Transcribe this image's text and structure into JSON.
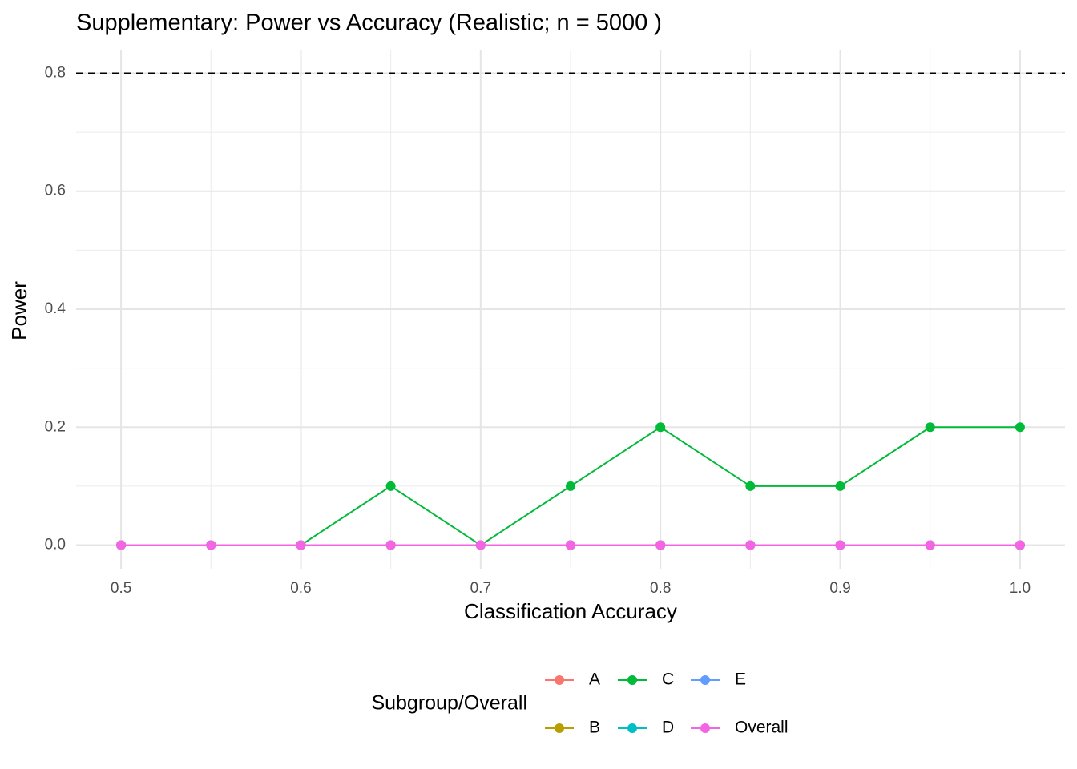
{
  "chart_data": {
    "type": "line",
    "title": "Supplementary: Power vs Accuracy (Realistic; n = 5000 )",
    "x_label": "Classification Accuracy",
    "y_label": "Power",
    "legend_title": "Subgroup/Overall",
    "legend_position": "bottom",
    "x": [
      0.5,
      0.55,
      0.6,
      0.65,
      0.7,
      0.75,
      0.8,
      0.85,
      0.9,
      0.95,
      1.0
    ],
    "series": [
      {
        "name": "A",
        "color": "#F8766D",
        "values": [
          0,
          0,
          0,
          0,
          0,
          0,
          0,
          0,
          0,
          0,
          0
        ]
      },
      {
        "name": "B",
        "color": "#B79F00",
        "values": [
          0,
          0,
          0,
          0,
          0,
          0,
          0,
          0,
          0,
          0,
          0
        ]
      },
      {
        "name": "C",
        "color": "#00BA38",
        "values": [
          0,
          0,
          0,
          0.1,
          0,
          0.1,
          0.2,
          0.1,
          0.1,
          0.2,
          0.2
        ]
      },
      {
        "name": "D",
        "color": "#00BFC4",
        "values": [
          0,
          0,
          0,
          0,
          0,
          0,
          0,
          0,
          0,
          0,
          0
        ]
      },
      {
        "name": "E",
        "color": "#619CFF",
        "values": [
          0,
          0,
          0,
          0,
          0,
          0,
          0,
          0,
          0,
          0,
          0
        ]
      },
      {
        "name": "Overall",
        "color": "#F564E3",
        "values": [
          0,
          0,
          0,
          0,
          0,
          0,
          0,
          0,
          0,
          0,
          0
        ]
      }
    ],
    "xlim": [
      0.475,
      1.025
    ],
    "ylim": [
      -0.04,
      0.84
    ],
    "xticks": [
      0.5,
      0.6,
      0.7,
      0.8,
      0.9,
      {
        "value": 1,
        "label": "1.0"
      }
    ],
    "yticks": [
      {
        "value": 0,
        "label": "0.0"
      },
      0.2,
      0.4,
      0.6,
      0.8
    ],
    "x_minor_ticks": [
      0.55,
      0.65,
      0.75,
      0.85,
      0.95
    ],
    "y_minor_ticks": [
      0.1,
      0.3,
      0.5,
      0.7
    ],
    "grid": true,
    "reference_line": {
      "value": 0.8,
      "style": "dashed",
      "color": "#000000"
    }
  }
}
